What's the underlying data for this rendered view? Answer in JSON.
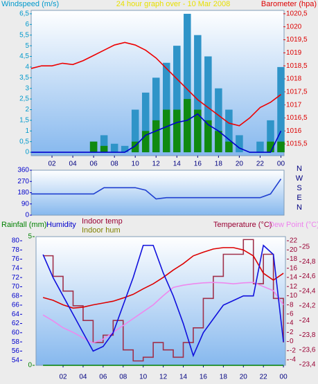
{
  "chart_data": [
    {
      "type": "combo",
      "title": "24 hour graph over - 10 Mar 2008",
      "title_color": "#e8e000",
      "y_label": "Windspeed (m/s)",
      "y2_label": "Barometer (hpa)",
      "axis_colors": {
        "y": "#0099cc",
        "y2": "#dd0000"
      },
      "x": [
        0,
        1,
        2,
        3,
        4,
        5,
        6,
        7,
        8,
        9,
        10,
        11,
        12,
        13,
        14,
        15,
        16,
        17,
        18,
        19,
        20,
        21,
        22,
        23,
        24
      ],
      "xlim": [
        0,
        24.3
      ],
      "xticks": [
        {
          "value": 2,
          "label": "02"
        },
        {
          "value": 4,
          "label": "04"
        },
        {
          "value": 6,
          "label": "06"
        },
        {
          "value": 8,
          "label": "08"
        },
        {
          "value": 10,
          "label": "10"
        },
        12,
        14,
        16,
        18,
        20,
        22,
        {
          "value": 24,
          "label": "00"
        }
      ],
      "ylim": [
        -0.16,
        6.66
      ],
      "yticks": [
        0,
        {
          "value": 0.5,
          "label": "0,5"
        },
        1,
        {
          "value": 1.5,
          "label": "1,5"
        },
        2,
        {
          "value": 2.5,
          "label": "2,5"
        },
        3,
        {
          "value": 3.5,
          "label": "3,5"
        },
        4,
        {
          "value": 4.5,
          "label": "4,5"
        },
        5,
        {
          "value": 5.5,
          "label": "5,5"
        },
        6,
        {
          "value": 6.5,
          "label": "6,5"
        }
      ],
      "y2lim": [
        1015.05,
        1020.63
      ],
      "y2ticks": [
        {
          "value": 1015.5,
          "label": "1015,5"
        },
        1016,
        {
          "value": 1016.5,
          "label": "1016,5"
        },
        1017,
        {
          "value": 1017.5,
          "label": "1017,5"
        },
        1018,
        {
          "value": 1018.5,
          "label": "1018,5"
        },
        1019,
        {
          "value": 1019.5,
          "label": "1019,5"
        },
        1020,
        {
          "value": 1020.5,
          "label": "1020,5"
        }
      ],
      "series": [
        {
          "kind": "bar",
          "axis": "y",
          "color": "#2f94c8",
          "values": [
            0,
            0,
            0,
            0,
            0,
            0,
            0.5,
            0.8,
            0.4,
            0.3,
            2.0,
            2.8,
            3.5,
            4.2,
            5.0,
            6.5,
            5.5,
            4.5,
            3.0,
            2.0,
            0.8,
            0,
            0.5,
            1.5,
            4.0
          ]
        },
        {
          "kind": "bar",
          "axis": "y",
          "color": "#108a10",
          "values": [
            0,
            0,
            0,
            0,
            0,
            0,
            0.5,
            0.3,
            0,
            0,
            0.5,
            1.0,
            1.5,
            2.0,
            2.0,
            2.5,
            2.0,
            1.5,
            1.0,
            0.5,
            0,
            0,
            0,
            0.5,
            0.5
          ]
        },
        {
          "kind": "line",
          "axis": "y",
          "color": "#0000cc",
          "values": [
            0,
            0,
            0,
            0,
            0,
            0,
            0,
            0,
            0,
            0,
            0.3,
            0.8,
            1.0,
            1.2,
            1.4,
            1.5,
            1.8,
            1.3,
            1.0,
            0.6,
            0.2,
            0,
            0,
            0,
            1.0
          ]
        },
        {
          "kind": "line",
          "axis": "y2",
          "color": "#ee0000",
          "values": [
            1018.4,
            1018.5,
            1018.5,
            1018.6,
            1018.55,
            1018.7,
            1018.9,
            1019.1,
            1019.3,
            1019.4,
            1019.3,
            1019.1,
            1018.8,
            1018.4,
            1018.0,
            1017.6,
            1017.2,
            1016.9,
            1016.6,
            1016.3,
            1016.2,
            1016.5,
            1016.9,
            1017.1,
            1017.4
          ]
        }
      ]
    },
    {
      "type": "combo",
      "axis_colors": {
        "y": "#0000cc"
      },
      "x": [
        0,
        1,
        2,
        3,
        4,
        5,
        6,
        7,
        8,
        9,
        10,
        11,
        12,
        13,
        14,
        15,
        16,
        17,
        18,
        19,
        20,
        21,
        22,
        23,
        24
      ],
      "xlim": [
        0,
        24.3
      ],
      "ylim": [
        0,
        360
      ],
      "yticks": [
        0,
        90,
        180,
        270,
        360
      ],
      "compass_labels": [
        "N",
        "W",
        "S",
        "E",
        "N"
      ],
      "series": [
        {
          "kind": "line",
          "axis": "y",
          "color": "#2040d0",
          "values": [
            170,
            170,
            170,
            170,
            170,
            170,
            170,
            220,
            220,
            220,
            220,
            200,
            130,
            140,
            140,
            140,
            140,
            140,
            140,
            140,
            140,
            140,
            140,
            170,
            290
          ]
        }
      ]
    },
    {
      "type": "combo",
      "labels": [
        {
          "text": "Rainfall (mm)",
          "color": "#008000"
        },
        {
          "text": "Humidity",
          "color": "#0000cc"
        },
        {
          "text": "Indoor temp",
          "color": "#990033"
        },
        {
          "text": "Indoor hum",
          "color": "#808000"
        },
        {
          "text": "Temperature (°C)",
          "color": "#990033"
        },
        {
          "text": "Dew Point (°C)",
          "color": "#ee82ee"
        }
      ],
      "axis_colors": {
        "y": "#008000",
        "y2": "#0000cc",
        "y3": "#990033",
        "y4": "#990033"
      },
      "x": [
        0,
        1,
        2,
        3,
        4,
        5,
        6,
        7,
        8,
        9,
        10,
        11,
        12,
        13,
        14,
        15,
        16,
        17,
        18,
        19,
        20,
        21,
        22,
        23,
        24
      ],
      "xlim": [
        -0.7,
        24.2
      ],
      "xticks": [
        {
          "value": 2,
          "label": "02"
        },
        {
          "value": 4,
          "label": "04"
        },
        {
          "value": 6,
          "label": "06"
        },
        {
          "value": 8,
          "label": "08"
        },
        {
          "value": 10,
          "label": "10"
        },
        12,
        14,
        16,
        18,
        20,
        22,
        {
          "value": 24,
          "label": "00"
        }
      ],
      "ylim": [
        0,
        5
      ],
      "yticks": [
        0,
        5
      ],
      "y2lim": [
        52.9,
        80.9
      ],
      "y2ticks": [
        54,
        56,
        58,
        60,
        62,
        64,
        66,
        68,
        70,
        72,
        74,
        76,
        78,
        80
      ],
      "y3lim": [
        -5.2,
        22.9
      ],
      "y3ticks": [
        -4,
        -2,
        0,
        2,
        4,
        6,
        8,
        10,
        12,
        14,
        16,
        18,
        20,
        22
      ],
      "y4lim": [
        23.39,
        25.14
      ],
      "y4ticks": [
        {
          "value": 23.4,
          "label": "23,4"
        },
        {
          "value": 23.6,
          "label": "23,6"
        },
        {
          "value": 23.8,
          "label": "23,8"
        },
        24,
        {
          "value": 24.2,
          "label": "24,2"
        },
        {
          "value": 24.4,
          "label": "24,4"
        },
        {
          "value": 24.6,
          "label": "24,6"
        },
        {
          "value": 24.8,
          "label": "24,8"
        },
        25
      ],
      "series": [
        {
          "kind": "line",
          "axis": "y",
          "color": "#008000",
          "values": [
            0,
            0,
            0,
            0,
            0,
            0,
            0,
            0,
            0,
            0,
            0,
            0,
            0,
            0,
            0,
            0,
            0,
            0,
            0,
            0,
            0,
            0,
            0,
            0,
            0
          ]
        },
        {
          "kind": "step",
          "axis": "y4",
          "color": "#a0304a",
          "values": [
            24.88,
            24.6,
            24.4,
            24.2,
            24.0,
            23.7,
            23.8,
            24.0,
            23.6,
            23.45,
            23.5,
            23.7,
            23.6,
            23.5,
            23.7,
            23.9,
            24.3,
            24.6,
            24.9,
            24.9,
            25.1,
            24.5,
            24.9,
            24.3,
            23.7
          ]
        },
        {
          "kind": "line",
          "axis": "y3",
          "color": "#ee88ee",
          "values": [
            5.8,
            4.5,
            3.0,
            2.0,
            0.8,
            -0.3,
            0.5,
            2.0,
            3.5,
            5.0,
            6.5,
            8.0,
            10.0,
            11.8,
            12.3,
            12.6,
            12.8,
            12.9,
            12.8,
            12.6,
            12.8,
            12.9,
            12.0,
            11.1,
            8.0
          ]
        },
        {
          "kind": "line",
          "axis": "y3",
          "color": "#dd0000",
          "values": [
            9.6,
            9.0,
            8.0,
            7.3,
            7.5,
            8.0,
            8.4,
            8.8,
            9.5,
            10.3,
            11.5,
            12.6,
            14.0,
            15.6,
            17.0,
            18.7,
            19.5,
            20.2,
            20.5,
            20.5,
            20.0,
            18.7,
            14.9,
            13.4,
            14.9
          ]
        },
        {
          "kind": "line",
          "axis": "y2",
          "color": "#1010dd",
          "values": [
            77,
            72,
            68,
            64,
            60,
            56,
            57,
            60,
            66,
            72,
            79,
            79,
            73,
            68,
            62,
            55,
            60,
            63,
            66,
            67,
            68,
            68,
            79,
            77,
            58
          ]
        }
      ]
    }
  ]
}
